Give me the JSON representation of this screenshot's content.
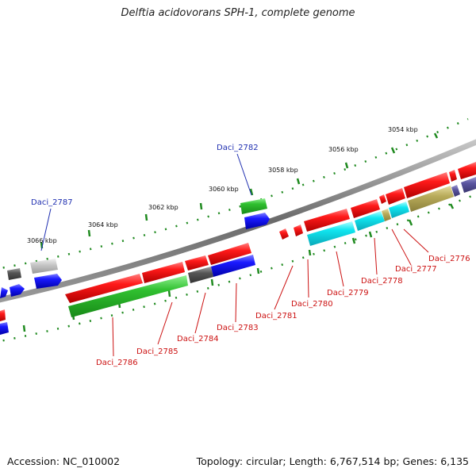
{
  "title": "Delftia acidovorans SPH-1, complete genome",
  "footer": {
    "accession": "Accession: NC_010002",
    "summary": "Topology: circular; Length: 6,767,514 bp; Genes: 6,135"
  },
  "scale_labels": [
    "3054 kbp",
    "3056 kbp",
    "3058 kbp",
    "3060 kbp",
    "3062 kbp",
    "3064 kbp",
    "3066 kbp"
  ],
  "gene_labels": {
    "Daci_2782": "Daci_2782",
    "Daci_2787": "Daci_2787",
    "Daci_2776": "Daci_2776",
    "Daci_2777": "Daci_2777",
    "Daci_2778": "Daci_2778",
    "Daci_2779": "Daci_2779",
    "Daci_2780": "Daci_2780",
    "Daci_2781": "Daci_2781",
    "Daci_2783": "Daci_2783",
    "Daci_2784": "Daci_2784",
    "Daci_2785": "Daci_2785",
    "Daci_2786": "Daci_2786"
  },
  "colors": {
    "backbone": "#8a8a8a",
    "scale_ticks": "#1f8a1f",
    "label_top": "#1f2fb0",
    "label_bottom": "#cc1111",
    "cds": "#e01818",
    "gene": "#2dbb2d",
    "rna": "#1414e0",
    "other": "#5a5a5a",
    "cyan": "#10e0ee",
    "olive": "#b8ab5a",
    "purple": "#5a55a0"
  }
}
